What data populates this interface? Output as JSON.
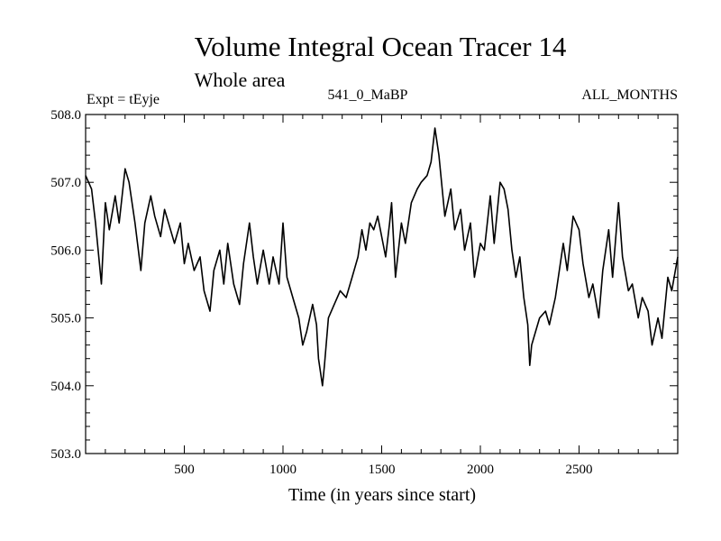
{
  "chart_data": {
    "type": "line",
    "title": "Volume Integral Ocean Tracer 14",
    "subtitle": "Whole area",
    "left_label": "Expt = tEyje",
    "center_label": "541_0_MaBP",
    "right_label": "ALL_MONTHS",
    "xlabel": "Time (in years since start)",
    "ylabel": "",
    "xlim": [
      0,
      3000
    ],
    "ylim": [
      503.0,
      508.0
    ],
    "x_ticks": [
      500,
      1000,
      1500,
      2000,
      2500
    ],
    "x_tick_labels": [
      "500",
      "1000",
      "1500",
      "2000",
      "2500"
    ],
    "y_ticks": [
      503.0,
      504.0,
      505.0,
      506.0,
      507.0,
      508.0
    ],
    "y_tick_labels": [
      "503.0",
      "504.0",
      "505.0",
      "506.0",
      "507.0",
      "508.0"
    ],
    "line_color": "#000000",
    "series": [
      {
        "name": "Volume Integral Ocean Tracer 14",
        "x": [
          0,
          30,
          50,
          80,
          100,
          120,
          150,
          170,
          200,
          220,
          250,
          280,
          300,
          330,
          350,
          380,
          400,
          430,
          450,
          480,
          500,
          520,
          550,
          580,
          600,
          630,
          650,
          680,
          700,
          720,
          750,
          780,
          800,
          830,
          850,
          870,
          900,
          930,
          950,
          980,
          1000,
          1020,
          1050,
          1080,
          1100,
          1120,
          1150,
          1170,
          1180,
          1200,
          1210,
          1230,
          1260,
          1290,
          1320,
          1350,
          1380,
          1400,
          1420,
          1440,
          1460,
          1480,
          1500,
          1520,
          1540,
          1550,
          1570,
          1600,
          1620,
          1650,
          1680,
          1700,
          1730,
          1750,
          1770,
          1790,
          1800,
          1820,
          1850,
          1870,
          1900,
          1920,
          1950,
          1970,
          2000,
          2020,
          2050,
          2070,
          2100,
          2120,
          2140,
          2160,
          2180,
          2200,
          2220,
          2240,
          2250,
          2260,
          2280,
          2300,
          2330,
          2350,
          2380,
          2400,
          2420,
          2440,
          2470,
          2500,
          2520,
          2550,
          2570,
          2600,
          2620,
          2650,
          2670,
          2700,
          2720,
          2750,
          2770,
          2800,
          2820,
          2850,
          2870,
          2900,
          2920,
          2950,
          2970,
          3000
        ],
        "values": [
          507.1,
          506.9,
          506.4,
          505.5,
          506.7,
          506.3,
          506.8,
          506.4,
          507.2,
          507.0,
          506.4,
          505.7,
          506.4,
          506.8,
          506.5,
          506.2,
          506.6,
          506.3,
          506.1,
          506.4,
          505.8,
          506.1,
          505.7,
          505.9,
          505.4,
          505.1,
          505.7,
          506.0,
          505.5,
          506.1,
          505.5,
          505.2,
          505.8,
          506.4,
          505.9,
          505.5,
          506.0,
          505.5,
          505.9,
          505.5,
          506.4,
          505.6,
          505.3,
          505.0,
          504.6,
          504.8,
          505.2,
          504.9,
          504.4,
          504.0,
          504.3,
          505.0,
          505.2,
          505.4,
          505.3,
          505.6,
          505.9,
          506.3,
          506.0,
          506.4,
          506.3,
          506.5,
          506.2,
          505.9,
          506.4,
          506.7,
          505.6,
          506.4,
          506.1,
          506.7,
          506.9,
          507.0,
          507.1,
          507.3,
          507.8,
          507.4,
          507.1,
          506.5,
          506.9,
          506.3,
          506.6,
          506.0,
          506.4,
          505.6,
          506.1,
          506.0,
          506.8,
          506.1,
          507.0,
          506.9,
          506.6,
          506.0,
          505.6,
          505.9,
          505.3,
          504.9,
          504.3,
          504.6,
          504.8,
          505.0,
          505.1,
          504.9,
          505.3,
          505.7,
          506.1,
          505.7,
          506.5,
          506.3,
          505.8,
          505.3,
          505.5,
          505.0,
          505.7,
          506.3,
          505.6,
          506.7,
          505.9,
          505.4,
          505.5,
          505.0,
          505.3,
          505.1,
          504.6,
          505.0,
          504.7,
          505.6,
          505.4,
          505.9
        ]
      }
    ]
  }
}
